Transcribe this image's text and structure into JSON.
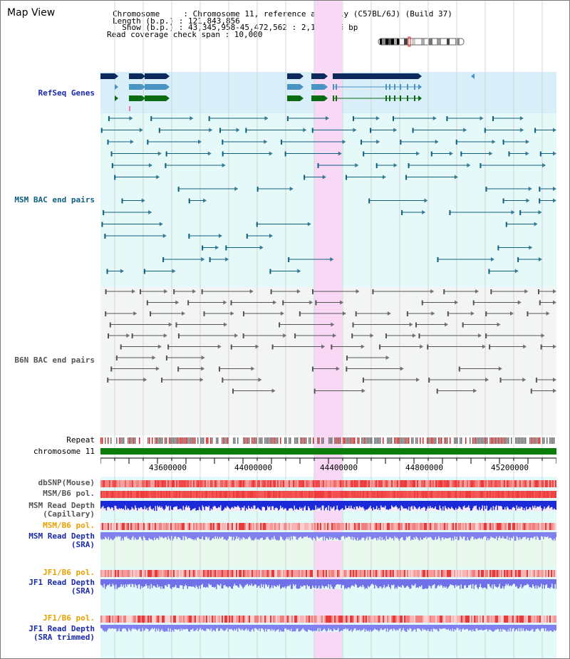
{
  "header": {
    "title": "Map View",
    "lines": [
      "Chromosome     : Chromosome 11, reference assembly (C57BL/6J) (Build 37)",
      "Length (b.p.) : 121,843,856",
      "  Show (b.p.) : 43,345,958-45,472,562 : 2,126,605 bp",
      "Read coverage check span : 10,000"
    ]
  },
  "tracks": {
    "refseq": "RefSeq Genes",
    "msm_bac": "MSM BAC end pairs",
    "b6n_bac": "B6N BAC end pairs",
    "repeat": "Repeat",
    "chromosome": "chromosome 11",
    "dbsnp": "dbSNP(Mouse)",
    "msm_pol": "MSM/B6 pol.",
    "msm_depth_cap_1": "MSM Read Depth",
    "msm_depth_cap_2": "(Capillary)",
    "msm_pol2": "MSM/B6 pol.",
    "msm_depth_sra_1": "MSM Read Depth",
    "msm_depth_sra_2": "(SRA)",
    "jf1_pol": "JF1/B6 pol.",
    "jf1_depth_1": "JF1 Read Depth",
    "jf1_depth_2": "(SRA)",
    "jf1_pol2": "JF1/B6 pol.",
    "jf1_trim_1": "JF1 Read Depth",
    "jf1_trim_2": "(SRA trimmed)"
  },
  "axis": {
    "ticks": [
      "43600000",
      "44000000",
      "44400000",
      "44800000",
      "45200000"
    ]
  },
  "colors": {
    "refseq_dark": "#0d2a5e",
    "refseq_mid": "#4a94c3",
    "refseq_green": "#0b6b12",
    "msm_bac": "#0f5f7f",
    "b6n_bac": "#555555",
    "highlight": "#f8d8f4",
    "label_blue": "#1a2aa8",
    "label_orange": "#e8a000",
    "label_teal": "#0f5f7f"
  }
}
